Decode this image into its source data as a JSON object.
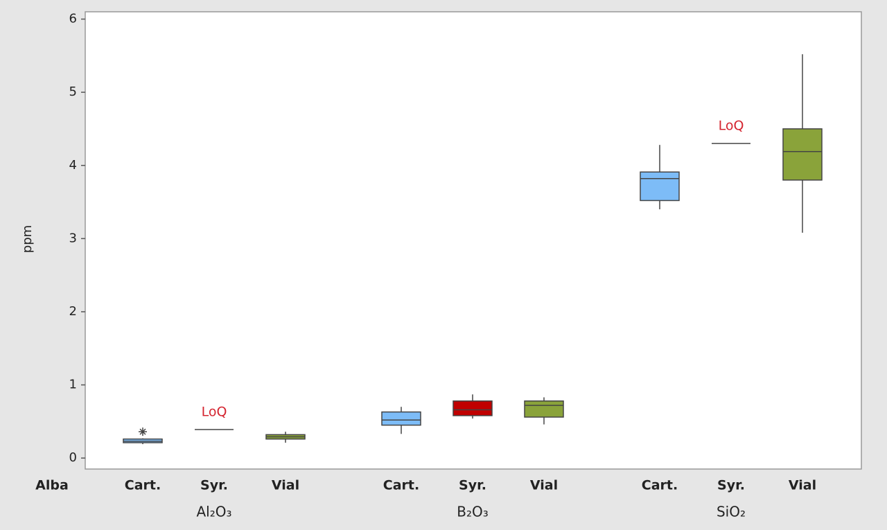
{
  "chart_data": {
    "type": "box",
    "y_label": "ppm",
    "x_label": "Alba",
    "ylim": [
      -0.15,
      6.1
    ],
    "yticks": [
      0,
      1,
      2,
      3,
      4,
      5,
      6
    ],
    "groups": [
      {
        "name": "Al₂O₃",
        "boxes": [
          {
            "category": "Cart.",
            "color": "#7dbcf7",
            "min": 0.19,
            "q1": 0.21,
            "median": 0.23,
            "q3": 0.26,
            "max": 0.27,
            "outliers": [
              0.36
            ]
          },
          {
            "category": "Syr.",
            "color": "#c00000",
            "min": 0.39,
            "q1": 0.39,
            "median": 0.39,
            "q3": 0.39,
            "max": 0.39,
            "annotation": "LoQ"
          },
          {
            "category": "Vial",
            "color": "#8aa33a",
            "min": 0.21,
            "q1": 0.26,
            "median": 0.29,
            "q3": 0.32,
            "max": 0.36
          }
        ]
      },
      {
        "name": "B₂O₃",
        "boxes": [
          {
            "category": "Cart.",
            "color": "#7dbcf7",
            "min": 0.33,
            "q1": 0.45,
            "median": 0.52,
            "q3": 0.63,
            "max": 0.7
          },
          {
            "category": "Syr.",
            "color": "#c00000",
            "min": 0.54,
            "q1": 0.58,
            "median": 0.66,
            "q3": 0.78,
            "max": 0.87
          },
          {
            "category": "Vial",
            "color": "#8aa33a",
            "min": 0.46,
            "q1": 0.56,
            "median": 0.72,
            "q3": 0.78,
            "max": 0.83
          }
        ]
      },
      {
        "name": "SiO₂",
        "boxes": [
          {
            "category": "Cart.",
            "color": "#7dbcf7",
            "min": 3.4,
            "q1": 3.52,
            "median": 3.82,
            "q3": 3.91,
            "max": 4.28
          },
          {
            "category": "Syr.",
            "color": "#c00000",
            "min": 4.3,
            "q1": 4.3,
            "median": 4.3,
            "q3": 4.3,
            "max": 4.3,
            "annotation": "LoQ"
          },
          {
            "category": "Vial",
            "color": "#8aa33a",
            "min": 3.08,
            "q1": 3.8,
            "median": 4.19,
            "q3": 4.5,
            "max": 5.52
          }
        ]
      }
    ]
  }
}
